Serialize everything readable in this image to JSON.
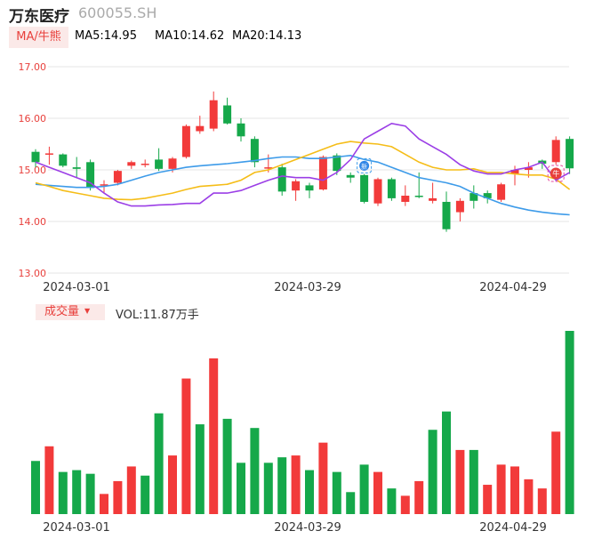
{
  "header": {
    "stock_name": "万东医疗",
    "stock_code": "600055.SH",
    "ma_select_label": "MA/牛熊",
    "ma5_label": "MA5:14.95",
    "ma10_label": "MA10:14.62",
    "ma20_label": "MA20:14.13",
    "volume_select_label": "成交量",
    "volume_readout": "VOL:11.87万手"
  },
  "colors": {
    "up": "#f23a3a",
    "down": "#15a84a",
    "ma5": "#9b3ee6",
    "ma10": "#f5bd18",
    "ma20": "#3d9be9",
    "axis_label": "#e8403c",
    "grid": "#e6e6e6"
  },
  "markers": {
    "new_label": "新",
    "bull_label": "牛"
  },
  "chart_data": [
    {
      "type": "candlestick",
      "title": "",
      "ylim": [
        13.0,
        17.0
      ],
      "y_ticks": [
        "17.00",
        "16.00",
        "15.00",
        "14.00",
        "13.00"
      ],
      "x_tick_labels": [
        "2024-03-01",
        "2024-03-29",
        "2024-04-29"
      ],
      "grid": true,
      "candles": [
        {
          "o": 15.35,
          "c": 15.15,
          "h": 15.4,
          "l": 15.05
        },
        {
          "o": 15.3,
          "c": 15.32,
          "h": 15.45,
          "l": 15.1
        },
        {
          "o": 15.3,
          "c": 15.08,
          "h": 15.32,
          "l": 15.05
        },
        {
          "o": 15.05,
          "c": 15.02,
          "h": 15.25,
          "l": 14.85
        },
        {
          "o": 15.15,
          "c": 14.65,
          "h": 15.2,
          "l": 14.6
        },
        {
          "o": 14.7,
          "c": 14.72,
          "h": 14.8,
          "l": 14.55
        },
        {
          "o": 14.75,
          "c": 14.98,
          "h": 15.0,
          "l": 14.7
        },
        {
          "o": 15.08,
          "c": 15.15,
          "h": 15.18,
          "l": 15.02
        },
        {
          "o": 15.12,
          "c": 15.12,
          "h": 15.2,
          "l": 15.05
        },
        {
          "o": 15.2,
          "c": 15.02,
          "h": 15.42,
          "l": 14.98
        },
        {
          "o": 15.02,
          "c": 15.22,
          "h": 15.25,
          "l": 14.95
        },
        {
          "o": 15.25,
          "c": 15.85,
          "h": 15.88,
          "l": 15.22
        },
        {
          "o": 15.75,
          "c": 15.85,
          "h": 16.05,
          "l": 15.7
        },
        {
          "o": 15.8,
          "c": 16.35,
          "h": 16.52,
          "l": 15.75
        },
        {
          "o": 16.25,
          "c": 15.9,
          "h": 16.4,
          "l": 15.88
        },
        {
          "o": 15.9,
          "c": 15.65,
          "h": 16.0,
          "l": 15.55
        },
        {
          "o": 15.6,
          "c": 15.15,
          "h": 15.65,
          "l": 15.05
        },
        {
          "o": 15.05,
          "c": 15.05,
          "h": 15.3,
          "l": 14.95
        },
        {
          "o": 15.05,
          "c": 14.58,
          "h": 15.12,
          "l": 14.5
        },
        {
          "o": 14.6,
          "c": 14.78,
          "h": 14.82,
          "l": 14.4
        },
        {
          "o": 14.7,
          "c": 14.6,
          "h": 14.75,
          "l": 14.45
        },
        {
          "o": 14.62,
          "c": 15.25,
          "h": 15.28,
          "l": 14.6
        },
        {
          "o": 15.28,
          "c": 14.98,
          "h": 15.32,
          "l": 14.9
        },
        {
          "o": 14.9,
          "c": 14.85,
          "h": 14.95,
          "l": 14.75
        },
        {
          "o": 14.9,
          "c": 14.38,
          "h": 14.92,
          "l": 14.35
        },
        {
          "o": 14.35,
          "c": 14.82,
          "h": 14.85,
          "l": 14.3
        },
        {
          "o": 14.82,
          "c": 14.45,
          "h": 14.85,
          "l": 14.4
        },
        {
          "o": 14.38,
          "c": 14.5,
          "h": 14.7,
          "l": 14.3
        },
        {
          "o": 14.5,
          "c": 14.48,
          "h": 14.95,
          "l": 14.45
        },
        {
          "o": 14.4,
          "c": 14.45,
          "h": 14.75,
          "l": 14.35
        },
        {
          "o": 14.38,
          "c": 13.85,
          "h": 14.58,
          "l": 13.8
        },
        {
          "o": 14.18,
          "c": 14.4,
          "h": 14.45,
          "l": 14.0
        },
        {
          "o": 14.55,
          "c": 14.4,
          "h": 14.7,
          "l": 14.25
        },
        {
          "o": 14.55,
          "c": 14.45,
          "h": 14.6,
          "l": 14.35
        },
        {
          "o": 14.42,
          "c": 14.72,
          "h": 14.75,
          "l": 14.38
        },
        {
          "o": 14.92,
          "c": 15.0,
          "h": 15.08,
          "l": 14.7
        },
        {
          "o": 15.0,
          "c": 15.05,
          "h": 15.15,
          "l": 14.85
        },
        {
          "o": 15.18,
          "c": 15.12,
          "h": 15.2,
          "l": 15.02
        },
        {
          "o": 15.15,
          "c": 15.58,
          "h": 15.65,
          "l": 15.1
        },
        {
          "o": 15.6,
          "c": 15.03,
          "h": 15.65,
          "l": 14.92
        }
      ],
      "ma5": [
        15.15,
        15.05,
        14.95,
        14.85,
        14.75,
        14.55,
        14.38,
        14.3,
        14.3,
        14.32,
        14.33,
        14.35,
        14.35,
        14.55,
        14.55,
        14.6,
        14.7,
        14.8,
        14.88,
        14.85,
        14.85,
        14.8,
        14.95,
        15.2,
        15.6,
        15.75,
        15.9,
        15.85,
        15.6,
        15.45,
        15.3,
        15.1,
        14.98,
        14.92,
        14.92,
        15.0,
        15.05,
        15.15,
        14.8,
        14.95
      ],
      "ma10": [
        14.75,
        14.68,
        14.6,
        14.55,
        14.5,
        14.45,
        14.43,
        14.42,
        14.45,
        14.5,
        14.55,
        14.62,
        14.68,
        14.7,
        14.72,
        14.8,
        14.95,
        15.0,
        15.1,
        15.2,
        15.3,
        15.4,
        15.5,
        15.55,
        15.52,
        15.5,
        15.45,
        15.3,
        15.15,
        15.05,
        15.0,
        15.0,
        15.02,
        14.95,
        14.95,
        14.92,
        14.9,
        14.9,
        14.82,
        14.62
      ],
      "ma20": [
        14.72,
        14.7,
        14.68,
        14.66,
        14.66,
        14.68,
        14.72,
        14.8,
        14.88,
        14.95,
        15.0,
        15.05,
        15.08,
        15.1,
        15.12,
        15.15,
        15.18,
        15.22,
        15.25,
        15.25,
        15.22,
        15.22,
        15.25,
        15.28,
        15.2,
        15.15,
        15.05,
        14.95,
        14.85,
        14.8,
        14.75,
        14.68,
        14.55,
        14.45,
        14.35,
        14.28,
        14.22,
        14.18,
        14.15,
        14.13
      ]
    },
    {
      "type": "bar",
      "title": "",
      "series_name": "VOL",
      "x_tick_labels": [
        "2024-03-01",
        "2024-03-29",
        "2024-04-29"
      ],
      "values_rel": [
        0.29,
        0.37,
        0.23,
        0.24,
        0.22,
        0.11,
        0.18,
        0.26,
        0.21,
        0.55,
        0.32,
        0.74,
        0.49,
        0.85,
        0.52,
        0.28,
        0.47,
        0.28,
        0.31,
        0.32,
        0.24,
        0.39,
        0.23,
        0.12,
        0.27,
        0.23,
        0.14,
        0.1,
        0.18,
        0.46,
        0.56,
        0.35,
        0.35,
        0.16,
        0.27,
        0.26,
        0.19,
        0.14,
        0.45,
        1.0
      ],
      "bar_up": [
        false,
        true,
        false,
        false,
        false,
        true,
        true,
        true,
        false,
        false,
        true,
        true,
        false,
        true,
        false,
        false,
        false,
        false,
        false,
        true,
        false,
        true,
        false,
        false,
        false,
        true,
        false,
        true,
        true,
        false,
        false,
        true,
        false,
        true,
        true,
        true,
        true,
        true,
        true,
        false
      ]
    }
  ]
}
